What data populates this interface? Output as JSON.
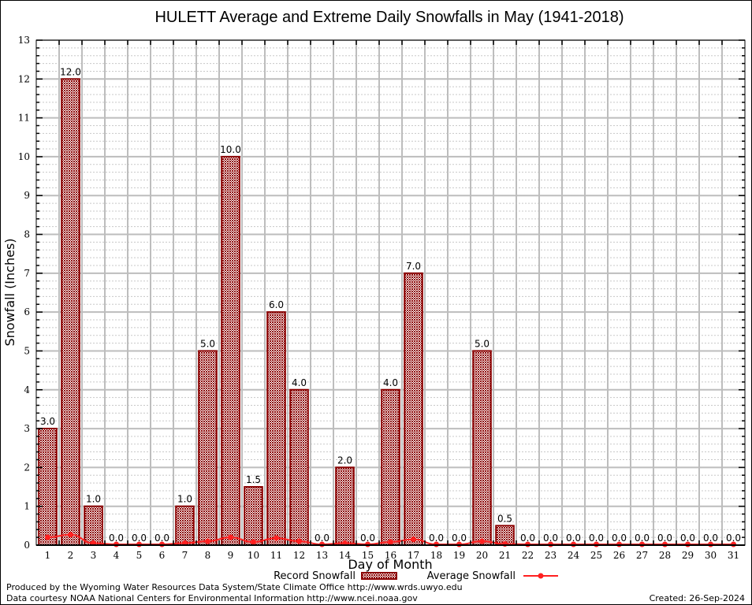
{
  "chart_data": {
    "type": "bar",
    "title": "HULETT Average and Extreme Daily Snowfalls in May (1941-2018)",
    "xlabel": "Day of Month",
    "ylabel": "Snowfall (Inches)",
    "ylim": [
      0,
      13
    ],
    "yticks": [
      "0",
      "1",
      "2",
      "3",
      "4",
      "5",
      "6",
      "7",
      "8",
      "9",
      "10",
      "11",
      "12",
      "13"
    ],
    "categories": [
      "1",
      "2",
      "3",
      "4",
      "5",
      "6",
      "7",
      "8",
      "9",
      "10",
      "11",
      "12",
      "13",
      "14",
      "15",
      "16",
      "17",
      "18",
      "19",
      "20",
      "21",
      "22",
      "23",
      "24",
      "25",
      "26",
      "27",
      "28",
      "29",
      "30",
      "31"
    ],
    "grid": true,
    "legend_position": "bottom",
    "series": [
      {
        "name": "Record Snowfall",
        "type": "bar",
        "color": "#8b0000",
        "values": [
          3.0,
          12.0,
          1.0,
          0.0,
          0.0,
          0.0,
          1.0,
          5.0,
          10.0,
          1.5,
          6.0,
          4.0,
          0.0,
          2.0,
          0.0,
          4.0,
          7.0,
          0.0,
          0.0,
          5.0,
          0.5,
          0.0,
          0.0,
          0.0,
          0.0,
          0.0,
          0.0,
          0.0,
          0.0,
          0.0,
          0.0
        ],
        "labels": [
          "3.0",
          "12.0",
          "1.0",
          "0.0",
          "0.0",
          "0.0",
          "1.0",
          "5.0",
          "10.0",
          "1.5",
          "6.0",
          "4.0",
          "0.0",
          "2.0",
          "0.0",
          "4.0",
          "7.0",
          "0.0",
          "0.0",
          "5.0",
          "0.5",
          "0.0",
          "0.0",
          "0.0",
          "0.0",
          "0.0",
          "0.0",
          "0.0",
          "0.0",
          "0.0",
          "0.0"
        ]
      },
      {
        "name": "Average Snowfall",
        "type": "line",
        "color": "#ff2020",
        "values": [
          0.18,
          0.25,
          0.03,
          0.0,
          0.0,
          0.0,
          0.03,
          0.08,
          0.18,
          0.06,
          0.16,
          0.08,
          0.0,
          0.03,
          0.0,
          0.06,
          0.13,
          0.0,
          0.0,
          0.08,
          0.01,
          0.0,
          0.0,
          0.0,
          0.0,
          0.0,
          0.0,
          0.0,
          0.0,
          0.0,
          0.0
        ]
      }
    ]
  },
  "footer": {
    "line1": "Produced by the Wyoming Water Resources Data System/State Climate Office http://www.wrds.uwyo.edu",
    "line2": "Data courtesy NOAA National Centers for Environmental Information http://www.ncei.noaa.gov",
    "created": "Created: 26-Sep-2024"
  }
}
